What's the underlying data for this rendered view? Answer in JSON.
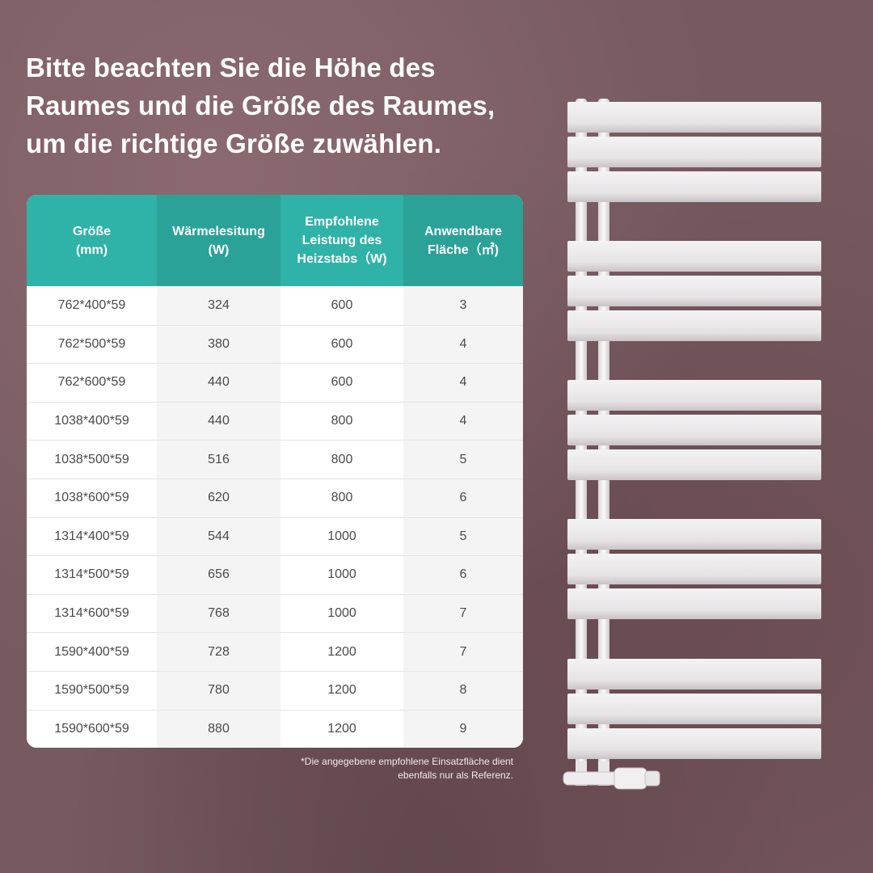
{
  "headline": {
    "line1": "Bitte beachten Sie die Höhe des",
    "line2": "Raumes und die Größe des Raumes,",
    "line3": "um die richtige Größe zuwählen."
  },
  "table": {
    "headers": [
      "Größe\n(mm)",
      "Wärmelesitung\n(W)",
      "Empfohlene\nLeistung des\nHeizstabs（W)",
      "Anwendbare\nFläche（㎡)"
    ],
    "rows": [
      [
        "762*400*59",
        "324",
        "600",
        "3"
      ],
      [
        "762*500*59",
        "380",
        "600",
        "4"
      ],
      [
        "762*600*59",
        "440",
        "600",
        "4"
      ],
      [
        "1038*400*59",
        "440",
        "800",
        "4"
      ],
      [
        "1038*500*59",
        "516",
        "800",
        "5"
      ],
      [
        "1038*600*59",
        "620",
        "800",
        "6"
      ],
      [
        "1314*400*59",
        "544",
        "1000",
        "5"
      ],
      [
        "1314*500*59",
        "656",
        "1000",
        "6"
      ],
      [
        "1314*600*59",
        "768",
        "1000",
        "7"
      ],
      [
        "1590*400*59",
        "728",
        "1200",
        "7"
      ],
      [
        "1590*500*59",
        "780",
        "1200",
        "8"
      ],
      [
        "1590*600*59",
        "880",
        "1200",
        "9"
      ]
    ]
  },
  "footnote": {
    "line1": "*Die angegebene empfohlene Einsatzfläche dient",
    "line2": "ebenfalls nur als Referenz."
  },
  "colors": {
    "header_teal": "#2fb2a7",
    "header_teal_dark": "#2ba297",
    "background_mauve": "#765a60"
  }
}
